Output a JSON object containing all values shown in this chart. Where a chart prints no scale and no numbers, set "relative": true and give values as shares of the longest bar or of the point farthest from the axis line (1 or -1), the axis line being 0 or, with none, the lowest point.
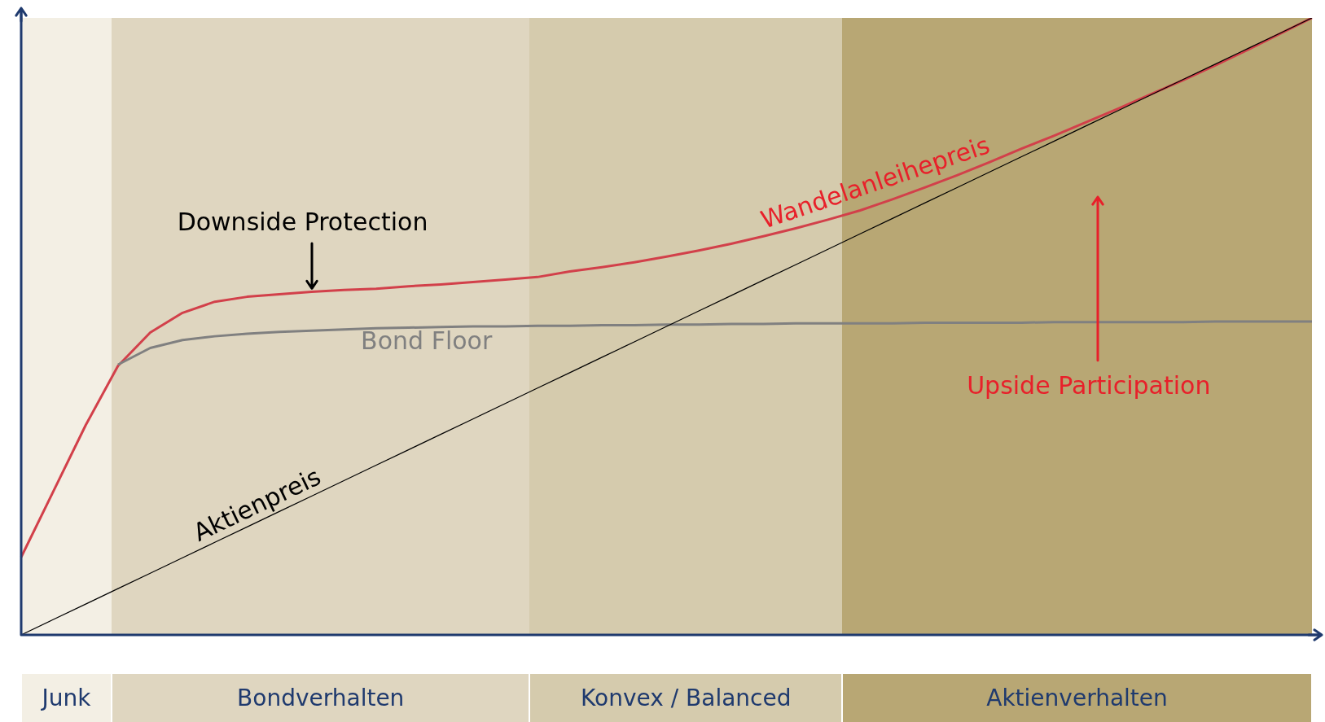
{
  "chart_data": {
    "type": "line",
    "relative": true,
    "legend": false,
    "categories": [
      null,
      null,
      null,
      null,
      null,
      null,
      null,
      null,
      null,
      null,
      null,
      null,
      null,
      null,
      null,
      null,
      null,
      null,
      null,
      null,
      null,
      null,
      null,
      null,
      null,
      null,
      null,
      null,
      null,
      null,
      null,
      null,
      null,
      null,
      null,
      null,
      null,
      null,
      null,
      null,
      null
    ],
    "series": [
      {
        "name": "Wandelanleihepreis",
        "color": "#d2404a",
        "values": [
          0.126,
          0.233,
          0.34,
          0.436,
          0.49,
          0.522,
          0.54,
          0.548,
          0.552,
          0.556,
          0.559,
          0.561,
          0.565,
          0.568,
          0.572,
          0.576,
          0.58,
          0.589,
          0.596,
          0.604,
          0.613,
          0.623,
          0.634,
          0.646,
          0.659,
          0.673,
          0.688,
          0.706,
          0.725,
          0.745,
          0.766,
          0.788,
          0.809,
          0.831,
          0.853,
          0.876,
          0.899,
          0.923,
          0.948,
          0.974,
          1.0
        ]
      },
      {
        "name": "Bond Floor",
        "color": "#808080",
        "values": [
          null,
          null,
          null,
          0.438,
          0.465,
          0.478,
          0.484,
          0.488,
          0.491,
          0.493,
          0.495,
          0.497,
          0.498,
          0.499,
          0.5,
          0.5,
          0.501,
          0.501,
          0.502,
          0.502,
          0.503,
          0.503,
          0.504,
          0.504,
          0.505,
          0.505,
          0.505,
          0.505,
          0.506,
          0.506,
          0.506,
          0.506,
          0.507,
          0.507,
          0.507,
          0.507,
          0.507,
          0.508,
          0.508,
          0.508,
          0.508
        ]
      },
      {
        "name": "Aktienpreis",
        "color": "#000000",
        "values": [
          0,
          0.025,
          0.05,
          0.075,
          0.1,
          0.125,
          0.15,
          0.175,
          0.2,
          0.225,
          0.25,
          0.275,
          0.3,
          0.325,
          0.35,
          0.375,
          0.4,
          0.425,
          0.45,
          0.475,
          0.5,
          0.525,
          0.55,
          0.575,
          0.6,
          0.625,
          0.65,
          0.675,
          0.7,
          0.725,
          0.75,
          0.775,
          0.8,
          0.825,
          0.85,
          0.875,
          0.9,
          0.925,
          0.95,
          0.975,
          1.0
        ]
      }
    ],
    "annotations": [
      "Downside Protection",
      "Upside Participation",
      "Junk",
      "Bondverhalten",
      "Konvex / Balanced",
      "Aktienverhalten"
    ]
  }
}
